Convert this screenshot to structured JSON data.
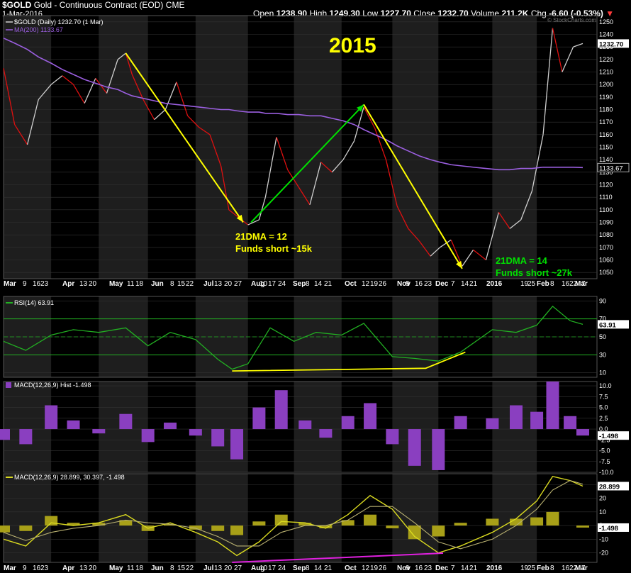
{
  "header": {
    "symbol": "$GOLD",
    "description": "Gold - Continuous Contract (EOD)",
    "exchange": "CME",
    "date": "1-Mar-2016",
    "open_label": "Open",
    "open": "1238.90",
    "high_label": "High",
    "high": "1249.30",
    "low_label": "Low",
    "low": "1227.70",
    "close_label": "Close",
    "close": "1232.70",
    "volume_label": "Volume",
    "volume": "211.2K",
    "chg_label": "Chg",
    "chg": "-6.60 (-0.53%)",
    "chg_arrow": "▼",
    "watermark": "© StockCharts.com"
  },
  "legends": {
    "price": "$GOLD (Daily) 1232.70 (1 Mar)",
    "ma": "MA(200) 1133.67",
    "rsi": "RSI(14) 63.91",
    "hist": "MACD(12,26,9) Hist -1.498",
    "macd": "MACD(12,26,9) 28.899, 30.397, -1.498"
  },
  "annotations": {
    "year": "2015",
    "left_line1": "21DMA = 12",
    "left_line2": "Funds short ~15k",
    "right_line1": "21DMA = 14",
    "right_line2": "Funds short ~27k"
  },
  "badges": {
    "price_last": "1232.70",
    "ma_last": "1133.67",
    "rsi_last": "63.91",
    "hist_last": "-1.498",
    "macd_last": "28.899",
    "macd_hist_last": "-1.498"
  },
  "colors": {
    "up": "#d0d0d0",
    "down": "#e01010",
    "ma": "#9b5fe0",
    "rsi": "#22b022",
    "hist": "#8a3fc0",
    "macd_hist": "#a8a018",
    "macd_line": "#dada20",
    "signal_line": "#b8b070",
    "arrow_yellow": "#ffff00",
    "arrow_green": "#00e000",
    "magenta": "#e020e0",
    "band_dark": "#1e1e1e"
  },
  "x_axis_labels": [
    "Mar",
    "9",
    "16",
    "23",
    "Apr",
    "13",
    "20",
    "May",
    "11",
    "18",
    "Jun",
    "8",
    "15",
    "22",
    "Jul",
    "13",
    "20",
    "27",
    "Aug",
    "10",
    "17",
    "24",
    "Sep",
    "8",
    "14",
    "21",
    "Oct",
    "12",
    "19",
    "26",
    "Nov",
    "9",
    "16",
    "23",
    "Dec",
    "7",
    "14",
    "21",
    "2016",
    "19",
    "25",
    "Feb",
    "8",
    "16",
    "22",
    "Mar",
    "7"
  ],
  "chart_data": [
    {
      "type": "line",
      "title": "$GOLD Gold - Continuous Contract (EOD)",
      "ylabel": "",
      "ylim": [
        1045,
        1255
      ],
      "y_ticks": [
        1050,
        1060,
        1070,
        1080,
        1090,
        1100,
        1110,
        1120,
        1130,
        1140,
        1150,
        1160,
        1170,
        1180,
        1190,
        1200,
        1210,
        1220,
        1230,
        1240,
        1250
      ],
      "x": [
        "2015-03-02",
        "2015-03-09",
        "2015-03-17",
        "2015-03-24",
        "2015-04-01",
        "2015-04-08",
        "2015-04-15",
        "2015-04-22",
        "2015-04-29",
        "2015-05-06",
        "2015-05-13",
        "2015-05-18",
        "2015-05-22",
        "2015-05-29",
        "2015-06-05",
        "2015-06-12",
        "2015-06-19",
        "2015-06-26",
        "2015-07-03",
        "2015-07-10",
        "2015-07-17",
        "2015-07-22",
        "2015-07-27",
        "2015-08-03",
        "2015-08-10",
        "2015-08-14",
        "2015-08-21",
        "2015-08-28",
        "2015-09-04",
        "2015-09-11",
        "2015-09-18",
        "2015-09-25",
        "2015-10-02",
        "2015-10-09",
        "2015-10-15",
        "2015-10-22",
        "2015-10-29",
        "2015-11-05",
        "2015-11-12",
        "2015-11-19",
        "2015-11-26",
        "2015-12-02",
        "2015-12-09",
        "2015-12-16",
        "2015-12-23",
        "2015-12-31",
        "2016-01-08",
        "2016-01-15",
        "2016-01-22",
        "2016-01-29",
        "2016-02-05",
        "2016-02-11",
        "2016-02-17",
        "2016-02-24",
        "2016-03-01"
      ],
      "series": [
        {
          "name": "$GOLD (Daily)",
          "values": [
            1213,
            1168,
            1152,
            1188,
            1200,
            1207,
            1200,
            1185,
            1205,
            1193,
            1220,
            1225,
            1208,
            1188,
            1172,
            1180,
            1202,
            1175,
            1166,
            1160,
            1135,
            1100,
            1095,
            1088,
            1092,
            1110,
            1158,
            1132,
            1118,
            1104,
            1138,
            1130,
            1140,
            1155,
            1182,
            1165,
            1140,
            1103,
            1085,
            1075,
            1063,
            1070,
            1076,
            1055,
            1068,
            1060,
            1098,
            1085,
            1092,
            1115,
            1160,
            1245,
            1210,
            1230,
            1232.7
          ]
        },
        {
          "name": "MA(200)",
          "values": [
            1237,
            1233,
            1228,
            1222,
            1217,
            1212,
            1208,
            1204,
            1201,
            1198,
            1196,
            1193,
            1191,
            1189,
            1187,
            1185,
            1184,
            1183,
            1182,
            1181,
            1180,
            1180,
            1179,
            1178,
            1178,
            1177,
            1177,
            1176,
            1176,
            1175,
            1175,
            1173,
            1171,
            1168,
            1164,
            1160,
            1156,
            1151,
            1147,
            1143,
            1140,
            1138,
            1136,
            1135,
            1134,
            1133,
            1132,
            1132,
            1133,
            1133,
            1134,
            1134,
            1134,
            1134,
            1133.67
          ]
        }
      ]
    },
    {
      "type": "line",
      "title": "RSI(14)",
      "ylim": [
        5,
        95
      ],
      "y_ticks": [
        10,
        30,
        50,
        70,
        90
      ],
      "x": [
        "2015-03-02",
        "2015-03-16",
        "2015-04-01",
        "2015-04-15",
        "2015-05-01",
        "2015-05-18",
        "2015-06-01",
        "2015-06-15",
        "2015-07-01",
        "2015-07-15",
        "2015-07-24",
        "2015-08-03",
        "2015-08-17",
        "2015-09-01",
        "2015-09-15",
        "2015-10-01",
        "2015-10-15",
        "2015-11-02",
        "2015-11-16",
        "2015-12-01",
        "2015-12-15",
        "2016-01-04",
        "2016-01-19",
        "2016-02-01",
        "2016-02-11",
        "2016-02-22",
        "2016-03-01"
      ],
      "series": [
        {
          "name": "RSI(14)",
          "values": [
            45,
            35,
            52,
            58,
            55,
            60,
            40,
            55,
            47,
            25,
            14,
            20,
            60,
            45,
            55,
            52,
            65,
            28,
            26,
            23,
            33,
            58,
            55,
            63,
            84,
            68,
            63.91
          ]
        }
      ],
      "annotations": {
        "yellow_line": "RSI support trendline from late Jul 2015 to mid Dec 2015"
      }
    },
    {
      "type": "bar",
      "title": "MACD(12,26,9) Hist",
      "ylim": [
        -10,
        11
      ],
      "y_ticks": [
        10.0,
        7.5,
        5.0,
        2.5,
        0.0,
        -2.5,
        -5.0,
        -7.5,
        -10.0
      ],
      "x": [
        "2015-03-02",
        "2015-03-16",
        "2015-04-01",
        "2015-04-15",
        "2015-05-01",
        "2015-05-18",
        "2015-06-01",
        "2015-06-15",
        "2015-07-01",
        "2015-07-15",
        "2015-07-27",
        "2015-08-10",
        "2015-08-24",
        "2015-09-08",
        "2015-09-21",
        "2015-10-05",
        "2015-10-19",
        "2015-11-02",
        "2015-11-16",
        "2015-12-01",
        "2015-12-15",
        "2016-01-04",
        "2016-01-19",
        "2016-02-01",
        "2016-02-11",
        "2016-02-22",
        "2016-03-01"
      ],
      "values": [
        -2.5,
        -3.5,
        5.5,
        2.0,
        -1.0,
        3.5,
        -3.0,
        1.5,
        -1.5,
        -4.0,
        -7.0,
        5.0,
        9.0,
        2.0,
        -2.0,
        3.0,
        6.0,
        -3.5,
        -8.5,
        -9.5,
        3.0,
        2.5,
        5.5,
        4.0,
        11.0,
        3.0,
        -1.498
      ]
    },
    {
      "type": "line",
      "title": "MACD(12,26,9)",
      "ylim": [
        -27,
        38
      ],
      "y_ticks": [
        30,
        20,
        10,
        0,
        -10,
        -20
      ],
      "x": [
        "2015-03-02",
        "2015-03-16",
        "2015-04-01",
        "2015-04-15",
        "2015-05-01",
        "2015-05-18",
        "2015-06-01",
        "2015-06-15",
        "2015-07-01",
        "2015-07-15",
        "2015-07-27",
        "2015-08-10",
        "2015-08-24",
        "2015-09-08",
        "2015-09-21",
        "2015-10-05",
        "2015-10-19",
        "2015-11-02",
        "2015-11-16",
        "2015-12-01",
        "2015-12-15",
        "2016-01-04",
        "2016-01-19",
        "2016-02-01",
        "2016-02-11",
        "2016-02-22",
        "2016-03-01"
      ],
      "series": [
        {
          "name": "MACD",
          "values": [
            -10,
            -15,
            2,
            0,
            2,
            8,
            -2,
            2,
            -5,
            -12,
            -22,
            -12,
            3,
            2,
            -2,
            8,
            22,
            12,
            -8,
            -20,
            -15,
            -5,
            5,
            18,
            36,
            33,
            28.899
          ]
        },
        {
          "name": "Signal",
          "values": [
            -5,
            -11,
            -5,
            -2,
            0,
            4,
            2,
            1,
            -2,
            -8,
            -15,
            -15,
            -5,
            0,
            0,
            4,
            14,
            14,
            2,
            -12,
            -17,
            -10,
            0,
            12,
            26,
            33,
            30.397
          ]
        }
      ],
      "hist": [
        -5,
        -4,
        7,
        2,
        2,
        4,
        -4,
        1,
        -3,
        -4,
        -7,
        3,
        8,
        2,
        -2,
        4,
        8,
        -2,
        -10,
        -8,
        2,
        5,
        5,
        6,
        10,
        0,
        -1.498
      ],
      "annotations": {
        "magenta_line": "MACD rising lows trendline from late Jul 2015 to early Dec 2015"
      }
    }
  ]
}
